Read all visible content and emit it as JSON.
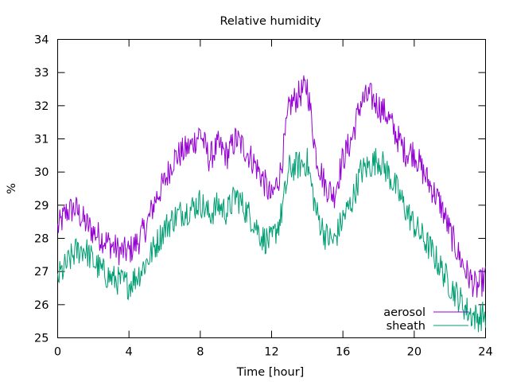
{
  "chart_data": {
    "type": "line",
    "title": "Relative humidity",
    "xlabel": "Time [hour]",
    "ylabel": "%",
    "xlim": [
      0,
      24
    ],
    "ylim": [
      25,
      34
    ],
    "xticks": [
      0,
      4,
      8,
      12,
      16,
      20,
      24
    ],
    "yticks": [
      25,
      26,
      27,
      28,
      29,
      30,
      31,
      32,
      33,
      34
    ],
    "grid": false,
    "legend_position": "bottom-right",
    "x": [
      0,
      0.5,
      1,
      1.5,
      2,
      2.5,
      3,
      3.5,
      4,
      4.5,
      5,
      5.5,
      6,
      6.5,
      7,
      7.5,
      8,
      8.5,
      9,
      9.5,
      10,
      10.5,
      11,
      11.5,
      12,
      12.5,
      13,
      13.5,
      14,
      14.5,
      15,
      15.5,
      16,
      16.5,
      17,
      17.5,
      18,
      18.5,
      19,
      19.5,
      20,
      20.5,
      21,
      21.5,
      22,
      22.5,
      23,
      23.5,
      24
    ],
    "series": [
      {
        "name": "aerosol",
        "color": "#9400d3",
        "values": [
          28.3,
          28.8,
          28.9,
          28.5,
          28.2,
          28.0,
          27.8,
          27.6,
          27.6,
          27.9,
          28.4,
          29.2,
          29.7,
          30.4,
          30.6,
          30.8,
          31.2,
          30.4,
          30.8,
          30.5,
          31.0,
          30.7,
          30.3,
          29.8,
          29.2,
          30.0,
          32.0,
          32.3,
          32.6,
          30.5,
          29.6,
          29.3,
          30.4,
          31.0,
          32.1,
          32.3,
          32.0,
          31.7,
          31.1,
          30.6,
          30.6,
          30.0,
          29.5,
          29.0,
          28.2,
          27.5,
          26.9,
          26.5,
          26.8
        ]
      },
      {
        "name": "sheath",
        "color": "#009e73",
        "values": [
          26.8,
          27.2,
          27.6,
          27.7,
          27.3,
          27.0,
          26.8,
          26.7,
          26.6,
          26.9,
          27.3,
          27.8,
          28.3,
          28.6,
          28.8,
          28.9,
          29.1,
          28.7,
          29.0,
          28.8,
          29.3,
          28.9,
          28.5,
          28.0,
          27.9,
          28.6,
          30.1,
          30.2,
          30.3,
          28.8,
          28.1,
          27.9,
          28.6,
          29.1,
          30.0,
          30.2,
          30.4,
          30.0,
          29.5,
          28.9,
          28.4,
          28.0,
          27.6,
          27.1,
          26.6,
          26.2,
          25.8,
          25.6,
          25.7
        ]
      }
    ]
  }
}
